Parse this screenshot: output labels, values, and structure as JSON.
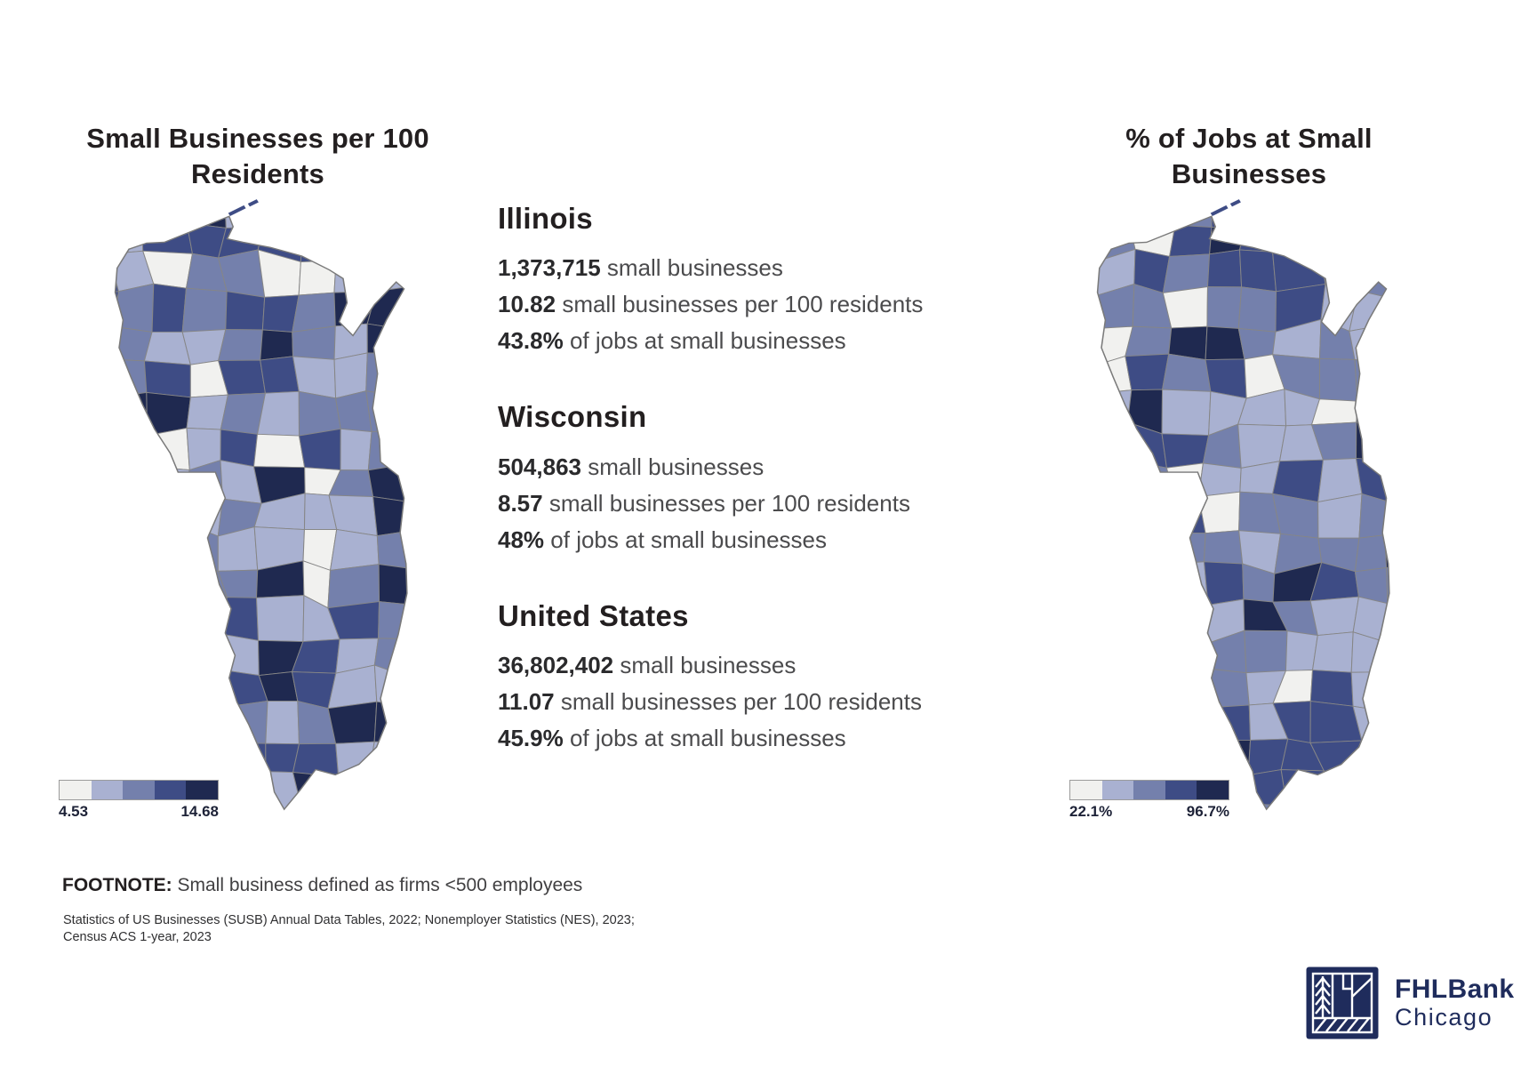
{
  "left_chart": {
    "title": "Small Businesses per 100\nResidents",
    "legend": {
      "min": "4.53",
      "max": "14.68"
    }
  },
  "right_chart": {
    "title": "% of Jobs at Small\nBusinesses",
    "legend": {
      "min": "22.1%",
      "max": "96.7%"
    }
  },
  "stats": {
    "sections": [
      {
        "name": "Illinois",
        "lines": [
          {
            "value": "1,373,715",
            "label": "small businesses"
          },
          {
            "value": "10.82",
            "label": "small businesses per 100 residents"
          },
          {
            "value": "43.8%",
            "label": "of jobs at small businesses"
          }
        ]
      },
      {
        "name": "Wisconsin",
        "lines": [
          {
            "value": "504,863",
            "label": "small businesses"
          },
          {
            "value": "8.57",
            "label": "small businesses per 100 residents"
          },
          {
            "value": "48%",
            "label": "of jobs at small businesses"
          }
        ]
      },
      {
        "name": "United States",
        "lines": [
          {
            "value": "36,802,402",
            "label": "small businesses"
          },
          {
            "value": "11.07",
            "label": "small businesses per 100 residents"
          },
          {
            "value": "45.9%",
            "label": "of jobs at small businesses"
          }
        ]
      }
    ]
  },
  "footnote": {
    "label": "FOOTNOTE:",
    "text": " Small business defined as firms <500 employees"
  },
  "source": {
    "text": "Statistics of US Businesses (SUSB) Annual Data Tables, 2022; Nonemployer Statistics (NES), 2023;\nCensus ACS 1-year, 2023"
  },
  "logo": {
    "line1": "FHLBank",
    "line2": "Chicago",
    "color": "#1f2c5c"
  },
  "chart_data": [
    {
      "type": "choropleth",
      "geography": "Wisconsin and Illinois counties (FHLBank Chicago district)",
      "title": "Small Businesses per 100 Residents",
      "unit": "small businesses per 100 residents",
      "legend": {
        "min": 4.53,
        "max": 14.68,
        "classes": 5,
        "colors": [
          "#f1f1ef",
          "#a9b1d1",
          "#7480ac",
          "#3e4c85",
          "#1f2950"
        ]
      },
      "region_summary": {
        "Illinois": {
          "small_businesses": 1373715,
          "per_100_residents": 10.82,
          "pct_jobs_at_small_businesses": 43.8
        },
        "Wisconsin": {
          "small_businesses": 504863,
          "per_100_residents": 8.57,
          "pct_jobs_at_small_businesses": 48
        },
        "United States": {
          "small_businesses": 36802402,
          "per_100_residents": 11.07,
          "pct_jobs_at_small_businesses": 45.9
        }
      }
    },
    {
      "type": "choropleth",
      "geography": "Wisconsin and Illinois counties (FHLBank Chicago district)",
      "title": "% of Jobs at Small Businesses",
      "unit": "percent of jobs at small businesses",
      "legend": {
        "min": 22.1,
        "max": 96.7,
        "unit": "%",
        "classes": 5,
        "colors": [
          "#f1f1ef",
          "#a9b1d1",
          "#7480ac",
          "#3e4c85",
          "#1f2950"
        ]
      }
    }
  ]
}
